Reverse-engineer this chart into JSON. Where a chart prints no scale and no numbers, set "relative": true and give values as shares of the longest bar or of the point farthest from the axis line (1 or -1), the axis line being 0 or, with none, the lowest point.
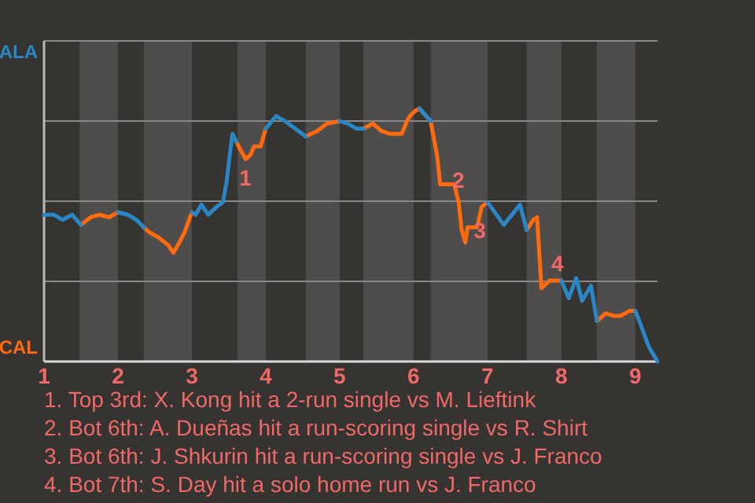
{
  "chart_data": {
    "type": "line",
    "relative": true,
    "x": [
      1,
      1.13,
      1.25,
      1.38,
      1.5,
      1.63,
      1.75,
      1.88,
      2,
      2.13,
      2.25,
      2.35,
      2.43,
      2.55,
      2.68,
      2.75,
      2.83,
      2.9,
      3,
      3.05,
      3.13,
      3.22,
      3.33,
      3.42,
      3.47,
      3.51,
      3.55,
      3.6,
      3.65,
      3.73,
      3.8,
      3.84,
      3.93,
      4,
      4.14,
      4.26,
      4.4,
      4.54,
      4.69,
      4.83,
      5,
      5.11,
      5.23,
      5.32,
      5.45,
      5.57,
      5.68,
      5.84,
      5.91,
      5.95,
      6.02,
      6.08,
      6.23,
      6.27,
      6.32,
      6.36,
      6.55,
      6.61,
      6.65,
      6.7,
      6.73,
      6.86,
      6.92,
      7,
      7.22,
      7.44,
      7.53,
      7.62,
      7.67,
      7.69,
      7.73,
      7.84,
      8,
      8.1,
      8.2,
      8.28,
      8.4,
      8.48,
      8.6,
      8.72,
      8.8,
      8.92,
      9,
      9.08,
      9.18,
      9.3
    ],
    "series": [
      {
        "color": "#2a86c4",
        "values": [
          0.58,
          0.58,
          0.56,
          0.58,
          0.54,
          null,
          null,
          null,
          0.59,
          0.58,
          0.56,
          0.53,
          null,
          null,
          null,
          null,
          null,
          null,
          0.59,
          0.58,
          0.62,
          0.58,
          0.61,
          0.63,
          0.71,
          0.81,
          0.9,
          0.87,
          null,
          null,
          null,
          null,
          null,
          0.92,
          0.97,
          0.95,
          0.92,
          0.89,
          null,
          null,
          0.95,
          0.94,
          0.92,
          0.92,
          null,
          null,
          null,
          null,
          null,
          null,
          null,
          1,
          0.95,
          null,
          null,
          null,
          null,
          null,
          null,
          null,
          null,
          null,
          null,
          0.63,
          0.54,
          0.62,
          0.52,
          null,
          null,
          null,
          null,
          null,
          0.32,
          0.25,
          0.33,
          0.24,
          0.3,
          0.16,
          null,
          null,
          null,
          null,
          0.2,
          0.14,
          0.06,
          0
        ]
      },
      {
        "color": "#ff6a10",
        "values": [
          null,
          null,
          null,
          null,
          0.54,
          0.57,
          0.58,
          0.57,
          0.59,
          null,
          null,
          0.53,
          0.51,
          0.49,
          0.46,
          0.43,
          0.47,
          0.51,
          0.59,
          null,
          null,
          null,
          null,
          null,
          null,
          null,
          null,
          0.87,
          0.84,
          0.8,
          0.82,
          0.85,
          0.85,
          0.92,
          null,
          null,
          null,
          0.89,
          0.91,
          0.94,
          0.95,
          null,
          null,
          0.92,
          0.94,
          0.91,
          0.9,
          0.9,
          0.95,
          0.97,
          0.99,
          1,
          0.95,
          0.89,
          0.81,
          0.7,
          0.7,
          0.63,
          0.52,
          0.47,
          0.53,
          0.53,
          0.61,
          0.63,
          null,
          null,
          0.52,
          0.56,
          0.57,
          0.48,
          0.29,
          0.32,
          0.32,
          null,
          null,
          null,
          null,
          0.16,
          0.19,
          0.18,
          0.18,
          0.2,
          0.2,
          null,
          null,
          null
        ]
      }
    ],
    "xlim": [
      1,
      9.3
    ],
    "xticks": [
      1,
      2,
      3,
      4,
      5,
      6,
      7,
      8,
      9
    ],
    "grid": "y",
    "bands": [
      {
        "axis": "x",
        "from": 1.48,
        "to": 2,
        "color": "#4f4d4b"
      },
      {
        "axis": "x",
        "from": 2.35,
        "to": 3,
        "color": "#4f4d4b"
      },
      {
        "axis": "x",
        "from": 3.62,
        "to": 4,
        "color": "#4f4d4b"
      },
      {
        "axis": "x",
        "from": 4.54,
        "to": 5,
        "color": "#4f4d4b"
      },
      {
        "axis": "x",
        "from": 5.32,
        "to": 6,
        "color": "#4f4d4b"
      },
      {
        "axis": "x",
        "from": 6.23,
        "to": 7,
        "color": "#4f4d4b"
      },
      {
        "axis": "x",
        "from": 7.53,
        "to": 8,
        "color": "#4f4d4b"
      },
      {
        "axis": "x",
        "from": 8.48,
        "to": 9,
        "color": "#4f4d4b"
      }
    ],
    "annotations": [
      "ALA",
      "CAL",
      {
        "text": "1",
        "x": 3.6,
        "y": 0.72
      },
      {
        "text": "2",
        "x": 6.48,
        "y": 0.71
      },
      {
        "text": "3",
        "x": 6.77,
        "y": 0.51
      },
      {
        "text": "4",
        "x": 7.82,
        "y": 0.38
      },
      "1. Top 3rd: X. Kong hit a 2-run single vs M. Lieftink",
      "2. Bot 6th: A. Dueñas hit a run-scoring single vs R. Shirt",
      "3. Bot 6th: J. Shkurin hit a run-scoring single vs J. Franco",
      "4. Bot 7th: S. Day hit a solo home run vs J. Franco"
    ]
  }
}
